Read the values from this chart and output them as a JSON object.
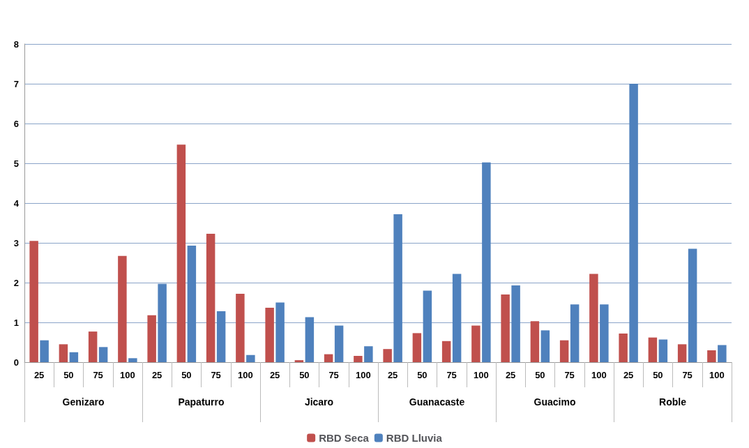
{
  "chart_data": {
    "type": "bar",
    "categories": [
      "25",
      "50",
      "75",
      "100",
      "25",
      "50",
      "75",
      "100",
      "25",
      "50",
      "75",
      "100",
      "25",
      "50",
      "75",
      "100",
      "25",
      "50",
      "75",
      "100",
      "25",
      "50",
      "75",
      "100"
    ],
    "annotations": [
      "Genizaro",
      "Papaturro",
      "Jicaro",
      "Guanacaste",
      "Guacimo",
      "Roble"
    ],
    "series": [
      {
        "name": "RBD Seca",
        "color": "#c0504d",
        "values": [
          3.05,
          0.45,
          0.77,
          2.67,
          1.18,
          5.47,
          3.23,
          1.72,
          1.37,
          0.05,
          0.2,
          0.16,
          0.33,
          0.73,
          0.53,
          0.92,
          1.7,
          1.03,
          0.55,
          2.22,
          0.72,
          0.62,
          0.45,
          0.3
        ]
      },
      {
        "name": "RBD Lluvia",
        "color": "#4f81bd",
        "values": [
          0.55,
          0.25,
          0.38,
          0.1,
          1.97,
          2.93,
          1.28,
          0.18,
          1.5,
          1.13,
          0.92,
          0.4,
          3.72,
          1.8,
          2.22,
          5.02,
          1.93,
          0.8,
          1.45,
          1.45,
          7.0,
          0.57,
          2.85,
          0.43
        ]
      }
    ],
    "ylim": [
      0,
      8
    ],
    "yticks": [
      0,
      1,
      2,
      3,
      4,
      5,
      6,
      7,
      8
    ],
    "grid": "y",
    "legend": "bottom"
  }
}
